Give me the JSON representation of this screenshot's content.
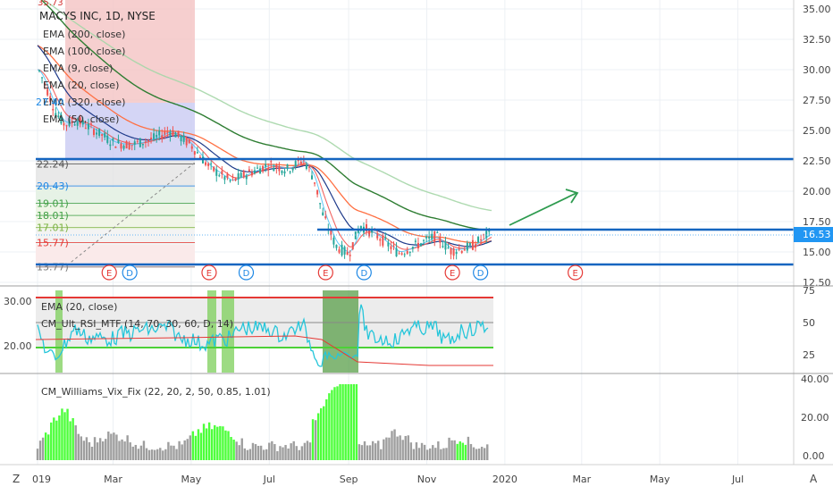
{
  "header": {
    "symbol_title": "MACYS INC, 1D, NYSE",
    "indicators": [
      "EMA (200, close)",
      "EMA (100, close)",
      "EMA (9, close)",
      "EMA (20, close)",
      "EMA (320, close)",
      "EMA (50, close)"
    ]
  },
  "badges": {
    "current_price": "16.53",
    "top_cut": "35.73",
    "left_27": "27.40"
  },
  "fib_labels": [
    "22.24)",
    "20.43)",
    "19.01)",
    "18.01)",
    "17.01)",
    "15.77)",
    "13.77)"
  ],
  "event_markers": [
    {
      "text": "E",
      "kind": "earnings",
      "date": "2019-02-26"
    },
    {
      "text": "D",
      "kind": "dividend",
      "date": "2019-03-14"
    },
    {
      "text": "E",
      "kind": "earnings",
      "date": "2019-05-15"
    },
    {
      "text": "D",
      "kind": "dividend",
      "date": "2019-06-13"
    },
    {
      "text": "E",
      "kind": "earnings",
      "date": "2019-08-14"
    },
    {
      "text": "D",
      "kind": "dividend",
      "date": "2019-09-13"
    },
    {
      "text": "E",
      "kind": "earnings",
      "date": "2019-11-21"
    },
    {
      "text": "D",
      "kind": "dividend",
      "date": "2019-12-13"
    },
    {
      "text": "E",
      "kind": "earnings",
      "date": "2020-02-25"
    }
  ],
  "rsi_panel": {
    "legend": [
      "EMA (20, close)",
      "CM_Ult_RSI_MTF (14, 70, 30, 60, D, 14)"
    ],
    "left_ticks": [
      "30.00",
      "20.00"
    ],
    "right_ticks": [
      "75",
      "50",
      "25"
    ]
  },
  "vix_panel": {
    "legend": "CM_Williams_Vix_Fix (22, 20, 2, 50, 0.85, 1.01)",
    "right_ticks": [
      "40.00",
      "20.00",
      "0.00"
    ]
  },
  "time_axis": [
    "019",
    "Mar",
    "May",
    "Jul",
    "Sep",
    "Nov",
    "2020",
    "Mar",
    "May",
    "Jul"
  ],
  "corner_left": "Z",
  "corner_right": "A",
  "colors": {
    "grid": "#ecf0f4",
    "price_line": "#1565c0",
    "badge_bg": "#2196f3",
    "earnings": "#e53935",
    "dividend": "#1e88e5",
    "ema_red": "#ef5350",
    "ema_blue": "#1e3a8a",
    "ema_orange": "#ff7043",
    "ema_green": "#2e7d32",
    "ema_lightgreen": "#a5d6a7",
    "rsi": "#26c6da",
    "vix_green": "#4cff3a",
    "vix_gray": "#9e9e9e"
  },
  "chart_data": {
    "type": "candlestick",
    "title": "MACYS INC, 1D, NYSE",
    "x_range": [
      "2018-12-20",
      "2020-08-25"
    ],
    "y_range": [
      11.4,
      35.4
    ],
    "y_ticks": [
      35.0,
      32.5,
      30.0,
      27.5,
      25.0,
      22.5,
      20.0,
      17.5,
      15.0,
      12.5
    ],
    "price_points": [
      [
        "2019-01-02",
        30.0
      ],
      [
        "2019-01-08",
        28.5
      ],
      [
        "2019-01-15",
        26.5
      ],
      [
        "2019-01-22",
        25.5
      ],
      [
        "2019-02-01",
        25.8
      ],
      [
        "2019-02-15",
        25.0
      ],
      [
        "2019-03-01",
        24.0
      ],
      [
        "2019-03-15",
        23.8
      ],
      [
        "2019-04-01",
        24.3
      ],
      [
        "2019-04-15",
        25.0
      ],
      [
        "2019-05-01",
        23.8
      ],
      [
        "2019-05-15",
        22.0
      ],
      [
        "2019-06-01",
        20.8
      ],
      [
        "2019-06-15",
        21.5
      ],
      [
        "2019-07-01",
        22.2
      ],
      [
        "2019-07-15",
        21.8
      ],
      [
        "2019-07-28",
        22.6
      ],
      [
        "2019-08-05",
        21.0
      ],
      [
        "2019-08-12",
        18.0
      ],
      [
        "2019-08-22",
        15.5
      ],
      [
        "2019-09-01",
        14.8
      ],
      [
        "2019-09-10",
        17.2
      ],
      [
        "2019-09-25",
        16.2
      ],
      [
        "2019-10-10",
        14.9
      ],
      [
        "2019-10-25",
        15.6
      ],
      [
        "2019-11-08",
        16.3
      ],
      [
        "2019-11-20",
        15.1
      ],
      [
        "2019-12-05",
        15.4
      ],
      [
        "2019-12-20",
        16.53
      ]
    ],
    "horizontal_levels": [
      22.7,
      17.2,
      14.1
    ],
    "fib_levels": [
      22.24,
      20.43,
      19.01,
      18.01,
      17.01,
      15.77,
      13.77
    ],
    "annotation": "green arrow pointing up toward 20.0 target",
    "last_price": 16.53
  }
}
